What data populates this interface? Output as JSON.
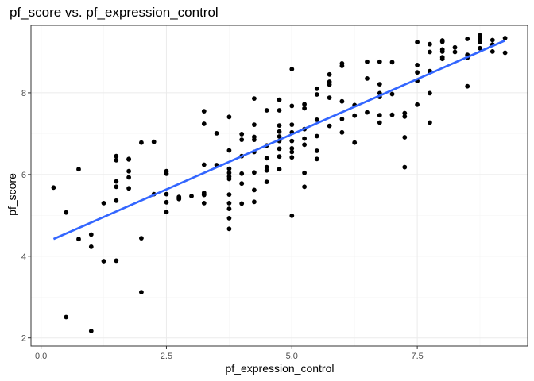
{
  "chart_data": {
    "type": "scatter",
    "title": "pf_score vs. pf_expression_control",
    "xlabel": "pf_expression_control",
    "ylabel": "pf_score",
    "xlim": [
      -0.2,
      9.7
    ],
    "ylim": [
      1.8,
      9.65
    ],
    "x_ticks": [
      0,
      2.5,
      5,
      7.5
    ],
    "x_tick_labels": [
      "0.0",
      "2.5",
      "5.0",
      "7.5"
    ],
    "y_ticks": [
      2,
      4,
      6,
      8
    ],
    "y_tick_labels": [
      "2",
      "4",
      "6",
      "8"
    ],
    "grid": true,
    "theme": "bw",
    "point_color": "#000000",
    "trend_color": "#3366ff",
    "trend_line": {
      "method": "linear",
      "x": [
        0.25,
        9.25
      ],
      "y": [
        4.42,
        9.28
      ]
    },
    "points": [
      {
        "x": 0.25,
        "y": 5.68
      },
      {
        "x": 0.5,
        "y": 5.07
      },
      {
        "x": 0.5,
        "y": 2.51
      },
      {
        "x": 0.75,
        "y": 6.13
      },
      {
        "x": 0.75,
        "y": 4.42
      },
      {
        "x": 1.0,
        "y": 4.53
      },
      {
        "x": 1.0,
        "y": 4.23
      },
      {
        "x": 1.0,
        "y": 2.17
      },
      {
        "x": 1.25,
        "y": 5.3
      },
      {
        "x": 1.25,
        "y": 3.88
      },
      {
        "x": 1.5,
        "y": 6.45
      },
      {
        "x": 1.5,
        "y": 6.35
      },
      {
        "x": 1.5,
        "y": 5.83
      },
      {
        "x": 1.5,
        "y": 5.7
      },
      {
        "x": 1.5,
        "y": 5.36
      },
      {
        "x": 1.5,
        "y": 3.89
      },
      {
        "x": 1.75,
        "y": 6.38
      },
      {
        "x": 1.75,
        "y": 6.37
      },
      {
        "x": 1.75,
        "y": 6.08
      },
      {
        "x": 1.75,
        "y": 5.93
      },
      {
        "x": 1.75,
        "y": 5.66
      },
      {
        "x": 2.0,
        "y": 6.78
      },
      {
        "x": 2.0,
        "y": 4.44
      },
      {
        "x": 2.0,
        "y": 3.12
      },
      {
        "x": 2.25,
        "y": 6.8
      },
      {
        "x": 2.25,
        "y": 5.52
      },
      {
        "x": 2.5,
        "y": 6.08
      },
      {
        "x": 2.5,
        "y": 6.02
      },
      {
        "x": 2.5,
        "y": 5.52
      },
      {
        "x": 2.5,
        "y": 5.32
      },
      {
        "x": 2.5,
        "y": 5.08
      },
      {
        "x": 2.75,
        "y": 5.45
      },
      {
        "x": 2.75,
        "y": 5.4
      },
      {
        "x": 3.0,
        "y": 5.47
      },
      {
        "x": 3.25,
        "y": 7.55
      },
      {
        "x": 3.25,
        "y": 7.24
      },
      {
        "x": 3.25,
        "y": 6.24
      },
      {
        "x": 3.25,
        "y": 5.55
      },
      {
        "x": 3.25,
        "y": 5.5
      },
      {
        "x": 3.25,
        "y": 5.3
      },
      {
        "x": 3.5,
        "y": 7.01
      },
      {
        "x": 3.5,
        "y": 6.23
      },
      {
        "x": 3.75,
        "y": 7.41
      },
      {
        "x": 3.75,
        "y": 6.59
      },
      {
        "x": 3.75,
        "y": 6.14
      },
      {
        "x": 3.75,
        "y": 6.04
      },
      {
        "x": 3.75,
        "y": 5.95
      },
      {
        "x": 3.75,
        "y": 5.89
      },
      {
        "x": 3.75,
        "y": 5.51
      },
      {
        "x": 3.75,
        "y": 5.3
      },
      {
        "x": 3.75,
        "y": 5.16
      },
      {
        "x": 3.75,
        "y": 4.93
      },
      {
        "x": 3.75,
        "y": 4.67
      },
      {
        "x": 4.0,
        "y": 6.99
      },
      {
        "x": 4.0,
        "y": 6.85
      },
      {
        "x": 4.0,
        "y": 6.45
      },
      {
        "x": 4.0,
        "y": 6.02
      },
      {
        "x": 4.0,
        "y": 5.78
      },
      {
        "x": 4.0,
        "y": 5.29
      },
      {
        "x": 4.25,
        "y": 7.86
      },
      {
        "x": 4.25,
        "y": 7.22
      },
      {
        "x": 4.25,
        "y": 6.92
      },
      {
        "x": 4.25,
        "y": 6.85
      },
      {
        "x": 4.25,
        "y": 6.55
      },
      {
        "x": 4.25,
        "y": 6.05
      },
      {
        "x": 4.25,
        "y": 5.62
      },
      {
        "x": 4.25,
        "y": 5.33
      },
      {
        "x": 4.5,
        "y": 7.57
      },
      {
        "x": 4.5,
        "y": 6.71
      },
      {
        "x": 4.5,
        "y": 6.4
      },
      {
        "x": 4.5,
        "y": 6.18
      },
      {
        "x": 4.5,
        "y": 6.1
      },
      {
        "x": 4.5,
        "y": 5.82
      },
      {
        "x": 4.75,
        "y": 7.83
      },
      {
        "x": 4.75,
        "y": 7.57
      },
      {
        "x": 4.75,
        "y": 7.2
      },
      {
        "x": 4.75,
        "y": 7.05
      },
      {
        "x": 4.75,
        "y": 6.93
      },
      {
        "x": 4.75,
        "y": 6.82
      },
      {
        "x": 4.75,
        "y": 6.63
      },
      {
        "x": 4.75,
        "y": 6.44
      },
      {
        "x": 4.75,
        "y": 6.13
      },
      {
        "x": 5.0,
        "y": 8.58
      },
      {
        "x": 5.0,
        "y": 7.68
      },
      {
        "x": 5.0,
        "y": 7.22
      },
      {
        "x": 5.0,
        "y": 7.03
      },
      {
        "x": 5.0,
        "y": 6.82
      },
      {
        "x": 5.0,
        "y": 6.64
      },
      {
        "x": 5.0,
        "y": 6.55
      },
      {
        "x": 5.0,
        "y": 6.42
      },
      {
        "x": 5.0,
        "y": 4.99
      },
      {
        "x": 5.25,
        "y": 7.72
      },
      {
        "x": 5.25,
        "y": 7.62
      },
      {
        "x": 5.25,
        "y": 7.11
      },
      {
        "x": 5.25,
        "y": 6.88
      },
      {
        "x": 5.25,
        "y": 6.73
      },
      {
        "x": 5.25,
        "y": 6.04
      },
      {
        "x": 5.25,
        "y": 5.7
      },
      {
        "x": 5.5,
        "y": 8.1
      },
      {
        "x": 5.5,
        "y": 7.96
      },
      {
        "x": 5.5,
        "y": 7.34
      },
      {
        "x": 5.5,
        "y": 6.94
      },
      {
        "x": 5.5,
        "y": 6.58
      },
      {
        "x": 5.5,
        "y": 6.38
      },
      {
        "x": 5.75,
        "y": 8.45
      },
      {
        "x": 5.75,
        "y": 8.27
      },
      {
        "x": 5.75,
        "y": 8.2
      },
      {
        "x": 5.75,
        "y": 7.88
      },
      {
        "x": 5.75,
        "y": 7.19
      },
      {
        "x": 6.0,
        "y": 8.72
      },
      {
        "x": 6.0,
        "y": 8.66
      },
      {
        "x": 6.0,
        "y": 7.79
      },
      {
        "x": 6.0,
        "y": 7.36
      },
      {
        "x": 6.0,
        "y": 7.03
      },
      {
        "x": 6.25,
        "y": 7.7
      },
      {
        "x": 6.25,
        "y": 7.44
      },
      {
        "x": 6.25,
        "y": 6.78
      },
      {
        "x": 6.5,
        "y": 8.76
      },
      {
        "x": 6.5,
        "y": 8.35
      },
      {
        "x": 6.5,
        "y": 7.52
      },
      {
        "x": 6.75,
        "y": 8.76
      },
      {
        "x": 6.75,
        "y": 8.21
      },
      {
        "x": 6.75,
        "y": 7.99
      },
      {
        "x": 6.75,
        "y": 7.9
      },
      {
        "x": 6.75,
        "y": 7.45
      },
      {
        "x": 6.75,
        "y": 7.27
      },
      {
        "x": 7.0,
        "y": 8.75
      },
      {
        "x": 7.0,
        "y": 7.97
      },
      {
        "x": 7.0,
        "y": 7.46
      },
      {
        "x": 7.25,
        "y": 7.5
      },
      {
        "x": 7.25,
        "y": 7.42
      },
      {
        "x": 7.25,
        "y": 6.91
      },
      {
        "x": 7.25,
        "y": 6.18
      },
      {
        "x": 7.5,
        "y": 9.24
      },
      {
        "x": 7.5,
        "y": 8.68
      },
      {
        "x": 7.5,
        "y": 8.5
      },
      {
        "x": 7.5,
        "y": 8.29
      },
      {
        "x": 7.5,
        "y": 7.71
      },
      {
        "x": 7.75,
        "y": 9.19
      },
      {
        "x": 7.75,
        "y": 9.0
      },
      {
        "x": 7.75,
        "y": 8.53
      },
      {
        "x": 7.75,
        "y": 7.99
      },
      {
        "x": 7.75,
        "y": 7.27
      },
      {
        "x": 8.0,
        "y": 9.28
      },
      {
        "x": 8.0,
        "y": 9.25
      },
      {
        "x": 8.0,
        "y": 9.06
      },
      {
        "x": 8.0,
        "y": 9.01
      },
      {
        "x": 8.0,
        "y": 8.87
      },
      {
        "x": 8.0,
        "y": 8.83
      },
      {
        "x": 8.25,
        "y": 9.11
      },
      {
        "x": 8.25,
        "y": 9.0
      },
      {
        "x": 8.5,
        "y": 9.32
      },
      {
        "x": 8.5,
        "y": 8.93
      },
      {
        "x": 8.5,
        "y": 8.86
      },
      {
        "x": 8.5,
        "y": 8.16
      },
      {
        "x": 8.75,
        "y": 9.41
      },
      {
        "x": 8.75,
        "y": 9.34
      },
      {
        "x": 8.75,
        "y": 9.24
      },
      {
        "x": 8.75,
        "y": 9.09
      },
      {
        "x": 9.0,
        "y": 9.29
      },
      {
        "x": 9.0,
        "y": 9.18
      },
      {
        "x": 9.0,
        "y": 9.01
      },
      {
        "x": 9.25,
        "y": 9.34
      },
      {
        "x": 9.25,
        "y": 8.98
      }
    ]
  }
}
